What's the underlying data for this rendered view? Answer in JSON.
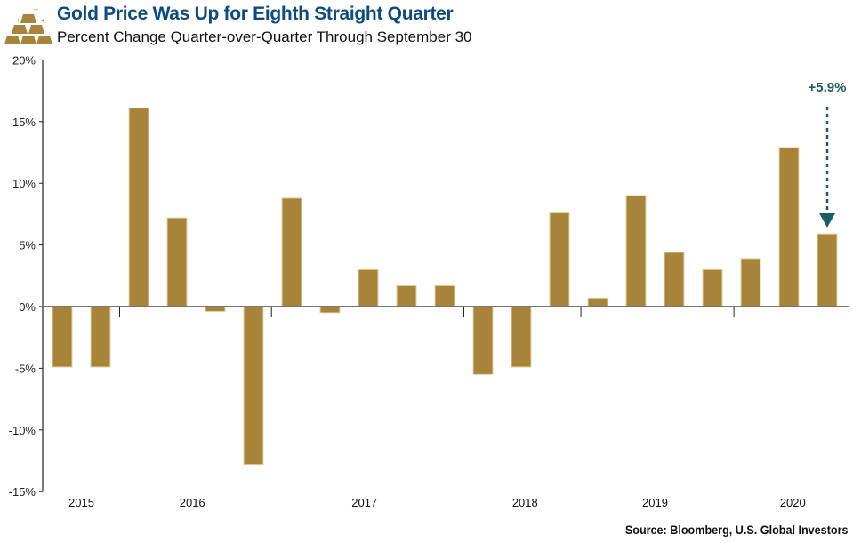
{
  "chart_data": {
    "type": "bar",
    "title": "Gold Price Was Up for Eighth Straight Quarter",
    "subtitle": "Percent Change Quarter-over-Quarter Through September 30",
    "values": [
      -4.9,
      -4.9,
      16.1,
      7.2,
      -0.4,
      -12.8,
      8.8,
      -0.5,
      3.0,
      1.7,
      1.7,
      -5.5,
      -4.9,
      7.6,
      0.7,
      9.0,
      4.4,
      3.0,
      3.9,
      12.9,
      5.9
    ],
    "year_labels": [
      "2015",
      "2016",
      "2017",
      "2018",
      "2019",
      "2020"
    ],
    "yticks": [
      "20%",
      "15%",
      "10%",
      "5%",
      "0%",
      "-5%",
      "-10%",
      "-15%"
    ],
    "ylim": [
      -15,
      20
    ],
    "annotation": "+5.9%",
    "source": "Source: Bloomberg, U.S. Global Investors",
    "colors": {
      "bar": "#a8843a",
      "title": "#0c4a84",
      "annotation": "#1a5e63"
    }
  }
}
